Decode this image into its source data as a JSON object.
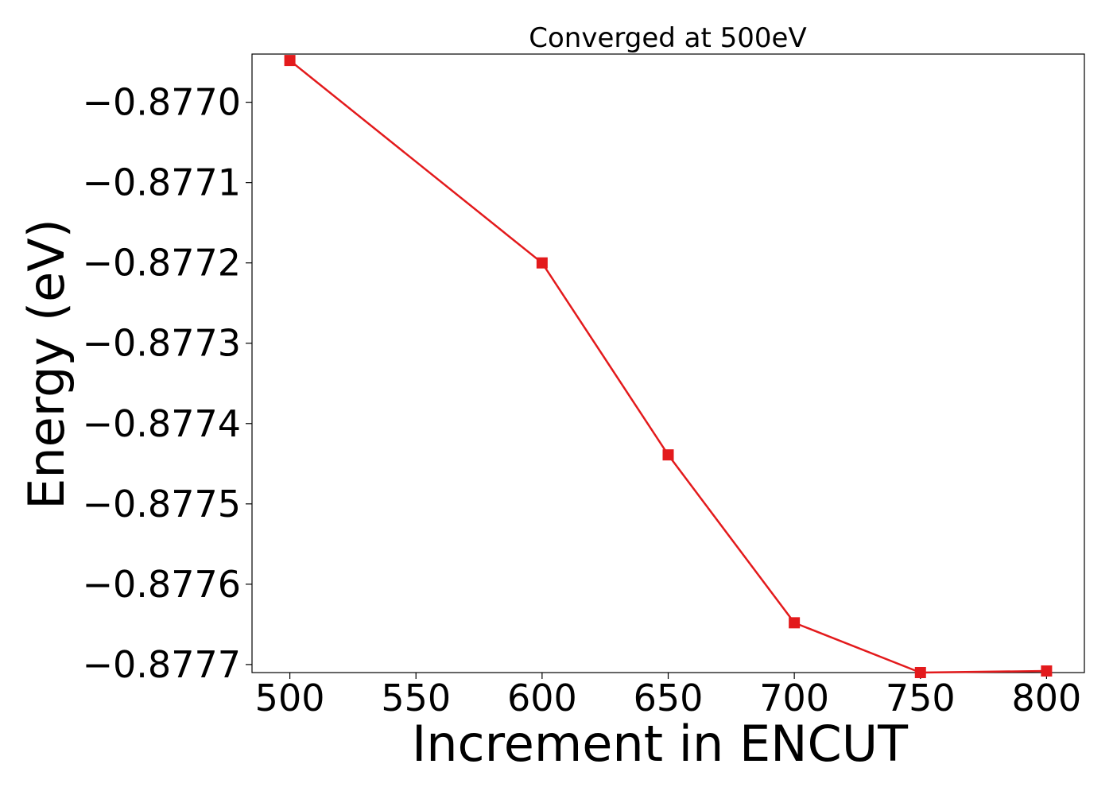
{
  "chart_data": {
    "type": "line",
    "title": "Converged at 500eV",
    "xlabel": "Increment in ENCUT",
    "ylabel": "Energy (eV)",
    "x": [
      500,
      600,
      650,
      700,
      750,
      800
    ],
    "series": [
      {
        "values": [
          -0.876948,
          -0.8772,
          -0.877439,
          -0.877648,
          -0.87771,
          -0.877708
        ],
        "color": "#e31a1c",
        "marker": "square"
      }
    ],
    "xlim": [
      485,
      815
    ],
    "ylim": [
      -0.87771,
      -0.87694
    ],
    "x_ticks": [
      500,
      550,
      600,
      650,
      700,
      750,
      800
    ],
    "x_tick_labels": [
      "500",
      "550",
      "600",
      "650",
      "700",
      "750",
      "800"
    ],
    "y_ticks": [
      -0.877,
      -0.8771,
      -0.8772,
      -0.8773,
      -0.8774,
      -0.8775,
      -0.8776,
      -0.8777
    ],
    "y_tick_labels": [
      "−0.8770",
      "−0.8771",
      "−0.8772",
      "−0.8773",
      "−0.8774",
      "−0.8775",
      "−0.8776",
      "−0.8777"
    ],
    "grid": false,
    "legend": "none"
  }
}
